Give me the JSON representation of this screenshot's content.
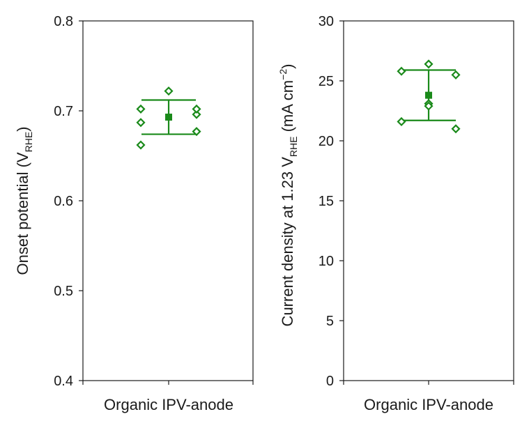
{
  "chart_data": [
    {
      "type": "scatter",
      "ylabel_main": "Onset potential (V",
      "ylabel_sub": "RHE",
      "ylabel_end": ")",
      "xcategory": "Organic IPV-anode",
      "ylim": [
        0.4,
        0.8
      ],
      "yticks": [
        "0.4",
        "0.5",
        "0.6",
        "0.7",
        "0.8"
      ],
      "ytick_values": [
        0.4,
        0.5,
        0.6,
        0.7,
        0.8
      ],
      "points": [
        {
          "x": -0.2,
          "y": 0.662
        },
        {
          "x": -0.2,
          "y": 0.687
        },
        {
          "x": -0.2,
          "y": 0.702
        },
        {
          "x": 0.0,
          "y": 0.722
        },
        {
          "x": 0.2,
          "y": 0.677
        },
        {
          "x": 0.2,
          "y": 0.696
        },
        {
          "x": 0.2,
          "y": 0.702
        }
      ],
      "mean": 0.693,
      "error_low": 0.674,
      "error_high": 0.712,
      "color": "#1a8a1a",
      "grid": false
    },
    {
      "type": "scatter",
      "ylabel_main": "Current density at 1.23 V",
      "ylabel_sub": "RHE",
      "ylabel_end": " (mA cm",
      "ylabel_sup": "−2",
      "ylabel_close": ")",
      "xcategory": "Organic IPV-anode",
      "ylim": [
        0,
        30
      ],
      "yticks": [
        "0",
        "5",
        "10",
        "15",
        "20",
        "25",
        "30"
      ],
      "ytick_values": [
        0,
        5,
        10,
        15,
        20,
        25,
        30
      ],
      "points": [
        {
          "x": -0.2,
          "y": 21.6
        },
        {
          "x": -0.2,
          "y": 25.8
        },
        {
          "x": 0.0,
          "y": 26.4
        },
        {
          "x": 0.0,
          "y": 23.1
        },
        {
          "x": 0.0,
          "y": 22.9
        },
        {
          "x": 0.2,
          "y": 25.5
        },
        {
          "x": 0.2,
          "y": 21.0
        }
      ],
      "mean": 23.8,
      "error_low": 21.7,
      "error_high": 25.9,
      "color": "#1a8a1a",
      "grid": false
    }
  ]
}
